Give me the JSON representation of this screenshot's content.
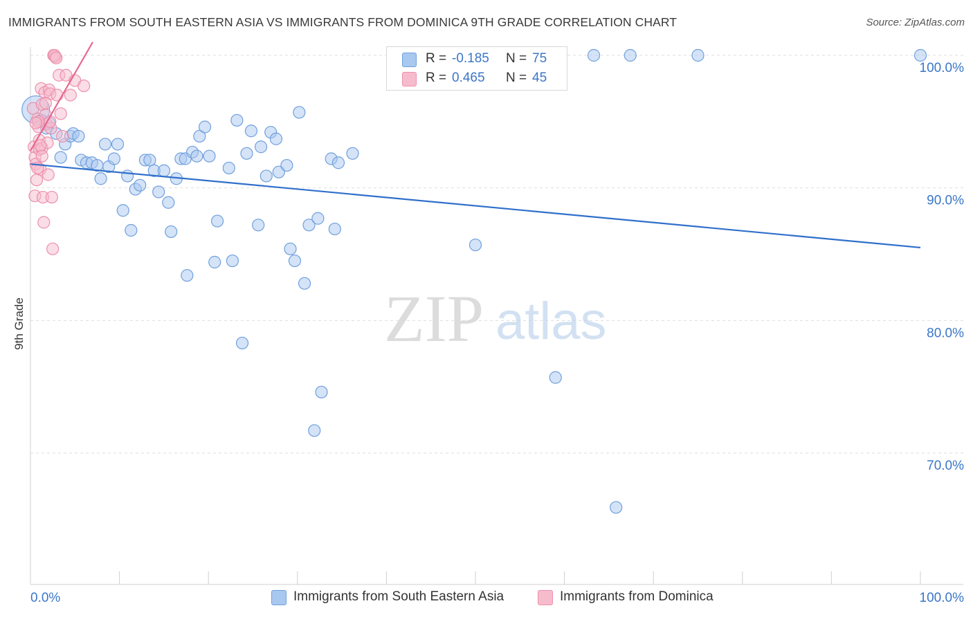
{
  "title": "IMMIGRANTS FROM SOUTH EASTERN ASIA VS IMMIGRANTS FROM DOMINICA 9TH GRADE CORRELATION CHART",
  "source": "Source: ZipAtlas.com",
  "watermark": {
    "zip": "ZIP",
    "atlas": "atlas"
  },
  "colors": {
    "blue_fill": "#a9c8ef",
    "blue_stroke": "#6f9fdc",
    "blue_line": "#2f6fcb",
    "pink_fill": "#f6bccd",
    "pink_stroke": "#ec8fab",
    "pink_line": "#e46892",
    "axis_label": "#3a76c8",
    "grid": "#dedede"
  },
  "legend": {
    "rows": [
      {
        "r_label": "R =",
        "r_value": "-0.185",
        "n_label": "N =",
        "n_value": "75"
      },
      {
        "r_label": "R =",
        "r_value": "0.465",
        "n_label": "N =",
        "n_value": "45"
      }
    ]
  },
  "bottom_legend": [
    "Immigrants from South Eastern Asia",
    "Immigrants from Dominica"
  ],
  "chart_data": {
    "type": "scatter",
    "title": "IMMIGRANTS FROM SOUTH EASTERN ASIA VS IMMIGRANTS FROM DOMINICA 9TH GRADE CORRELATION CHART",
    "xlabel": "",
    "ylabel": "9th Grade",
    "xlim": [
      0,
      100
    ],
    "ylim": [
      60,
      101
    ],
    "x_tick_labels": [
      "0.0%",
      "100.0%"
    ],
    "y_ticks": [
      100,
      90,
      80,
      70
    ],
    "y_tick_labels": [
      "100.0%",
      "90.0%",
      "80.0%",
      "70.0%"
    ],
    "grid": true,
    "legend_position": "top-center",
    "series": [
      {
        "name": "Immigrants from South Eastern Asia",
        "r": -0.185,
        "n": 75,
        "trend": {
          "x": [
            0,
            100
          ],
          "y": [
            91.8,
            85.5
          ]
        },
        "points": [
          [
            0.6,
            95.9
          ],
          [
            1.2,
            95.1
          ],
          [
            1.8,
            94.5
          ],
          [
            2.1,
            94.9
          ],
          [
            2.9,
            94.1
          ],
          [
            3.4,
            92.3
          ],
          [
            3.9,
            93.3
          ],
          [
            4.5,
            93.9
          ],
          [
            4.8,
            94.1
          ],
          [
            5.4,
            93.9
          ],
          [
            5.7,
            92.1
          ],
          [
            6.3,
            91.9
          ],
          [
            6.9,
            91.9
          ],
          [
            7.5,
            91.7
          ],
          [
            7.9,
            90.7
          ],
          [
            8.4,
            93.3
          ],
          [
            8.8,
            91.6
          ],
          [
            9.4,
            92.2
          ],
          [
            9.8,
            93.3
          ],
          [
            10.4,
            88.3
          ],
          [
            10.9,
            90.9
          ],
          [
            11.3,
            86.8
          ],
          [
            11.8,
            89.9
          ],
          [
            12.3,
            90.2
          ],
          [
            12.9,
            92.1
          ],
          [
            13.4,
            92.1
          ],
          [
            13.9,
            91.3
          ],
          [
            14.4,
            89.7
          ],
          [
            15.0,
            91.3
          ],
          [
            15.5,
            88.9
          ],
          [
            15.8,
            86.7
          ],
          [
            16.4,
            90.7
          ],
          [
            16.9,
            92.2
          ],
          [
            17.4,
            92.2
          ],
          [
            17.6,
            83.4
          ],
          [
            18.2,
            92.7
          ],
          [
            18.7,
            92.4
          ],
          [
            19.0,
            93.9
          ],
          [
            19.6,
            94.6
          ],
          [
            20.1,
            92.4
          ],
          [
            20.7,
            84.4
          ],
          [
            21.0,
            87.5
          ],
          [
            22.3,
            91.5
          ],
          [
            22.7,
            84.5
          ],
          [
            23.2,
            95.1
          ],
          [
            23.8,
            78.3
          ],
          [
            24.3,
            92.6
          ],
          [
            24.8,
            94.3
          ],
          [
            25.6,
            87.2
          ],
          [
            25.9,
            93.1
          ],
          [
            26.5,
            90.9
          ],
          [
            27.0,
            94.2
          ],
          [
            27.6,
            93.7
          ],
          [
            27.9,
            91.2
          ],
          [
            28.8,
            91.7
          ],
          [
            29.2,
            85.4
          ],
          [
            29.7,
            84.5
          ],
          [
            30.2,
            95.7
          ],
          [
            30.8,
            82.8
          ],
          [
            31.3,
            87.2
          ],
          [
            31.9,
            71.7
          ],
          [
            32.3,
            87.7
          ],
          [
            32.7,
            74.6
          ],
          [
            33.8,
            92.2
          ],
          [
            34.2,
            86.9
          ],
          [
            34.6,
            91.9
          ],
          [
            36.2,
            92.6
          ],
          [
            43.5,
            100.0
          ],
          [
            50.0,
            85.7
          ],
          [
            59.0,
            75.7
          ],
          [
            63.3,
            100.0
          ],
          [
            65.8,
            65.9
          ],
          [
            67.4,
            100.0
          ],
          [
            75.0,
            100.0
          ],
          [
            100.0,
            100.0
          ]
        ]
      },
      {
        "name": "Immigrants from Dominica",
        "r": 0.465,
        "n": 45,
        "trend": {
          "x": [
            0,
            7.0
          ],
          "y": [
            92.8,
            101.0
          ]
        },
        "points": [
          [
            0.3,
            96.0
          ],
          [
            0.4,
            93.1
          ],
          [
            0.5,
            92.3
          ],
          [
            0.6,
            91.8
          ],
          [
            0.7,
            90.6
          ],
          [
            0.5,
            89.4
          ],
          [
            0.8,
            95.2
          ],
          [
            0.9,
            94.6
          ],
          [
            1.0,
            93.6
          ],
          [
            1.0,
            92.9
          ],
          [
            1.1,
            91.4
          ],
          [
            1.2,
            97.5
          ],
          [
            1.3,
            96.3
          ],
          [
            1.3,
            93.0
          ],
          [
            1.4,
            89.3
          ],
          [
            1.5,
            87.4
          ],
          [
            1.6,
            97.2
          ],
          [
            1.7,
            95.5
          ],
          [
            1.8,
            94.8
          ],
          [
            1.9,
            93.4
          ],
          [
            2.0,
            91.0
          ],
          [
            2.1,
            97.4
          ],
          [
            2.2,
            97.1
          ],
          [
            2.3,
            94.5
          ],
          [
            2.4,
            89.3
          ],
          [
            2.5,
            85.4
          ],
          [
            2.6,
            100.0
          ],
          [
            2.8,
            99.9
          ],
          [
            3.0,
            97.0
          ],
          [
            3.2,
            98.5
          ],
          [
            3.4,
            95.6
          ],
          [
            3.6,
            93.9
          ],
          [
            4.0,
            98.5
          ],
          [
            4.5,
            97.0
          ],
          [
            5.0,
            98.1
          ],
          [
            6.0,
            97.7
          ],
          [
            0.9,
            95.0
          ],
          [
            1.1,
            93.2
          ],
          [
            0.6,
            94.9
          ],
          [
            1.7,
            96.4
          ],
          [
            2.2,
            95.0
          ],
          [
            0.8,
            91.5
          ],
          [
            1.3,
            92.4
          ],
          [
            2.7,
            100.0
          ],
          [
            2.9,
            99.8
          ]
        ]
      }
    ]
  }
}
